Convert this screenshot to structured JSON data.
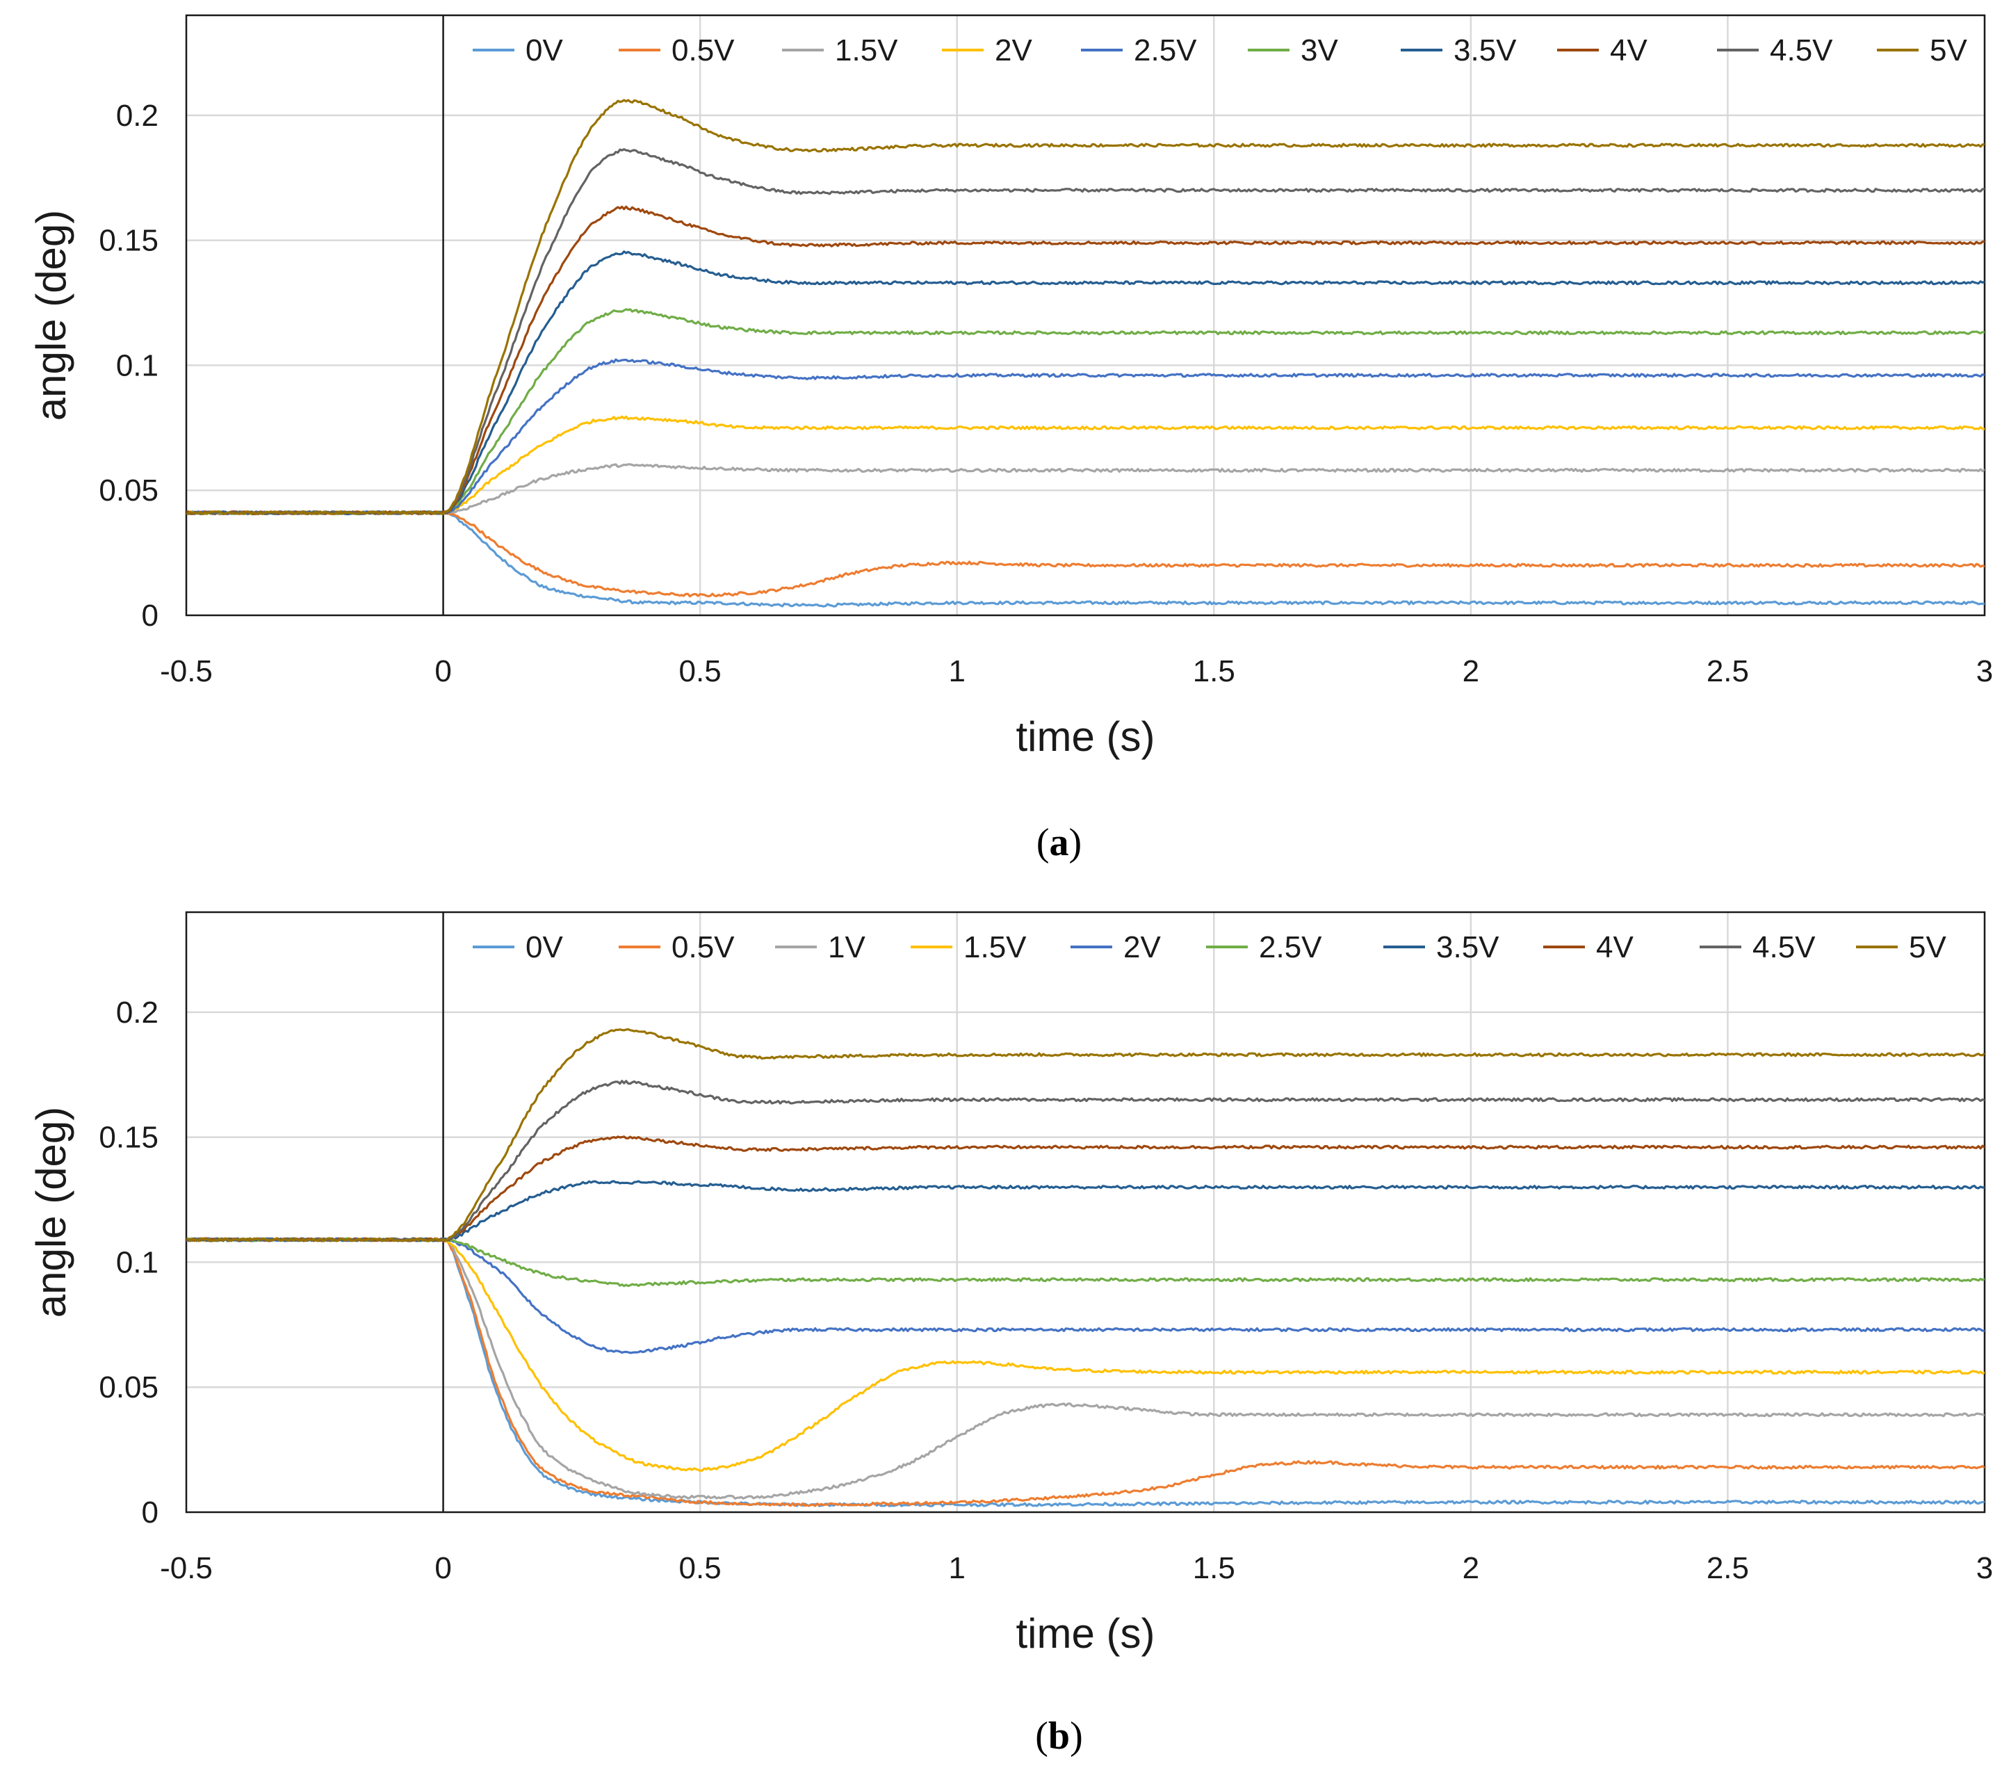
{
  "chart_data": [
    {
      "type": "line",
      "panel_label": "(a)",
      "panel_letter": "a",
      "xlabel": "time (s)",
      "ylabel": "angle (deg)",
      "xlim": [
        -0.5,
        3
      ],
      "ylim": [
        0,
        0.24
      ],
      "x_ticks": [
        -0.5,
        0,
        0.5,
        1,
        1.5,
        2,
        2.5,
        3
      ],
      "x_tick_labels": [
        "-0.5",
        "0",
        "0.5",
        "1",
        "1.5",
        "2",
        "2.5",
        "3"
      ],
      "y_ticks": [
        0,
        0.05,
        0.1,
        0.15,
        0.2
      ],
      "y_tick_labels": [
        "0",
        "0.05",
        "0.1",
        "0.15",
        "0.2"
      ],
      "grid": true,
      "legend_position": "top",
      "series": [
        {
          "name": "0V",
          "color": "#5B9BD5",
          "x": [
            -0.5,
            0,
            0.05,
            0.1,
            0.15,
            0.2,
            0.3,
            0.4,
            0.5,
            0.7,
            1,
            2,
            3
          ],
          "values": [
            0.041,
            0.041,
            0.035,
            0.025,
            0.017,
            0.011,
            0.007,
            0.005,
            0.005,
            0.004,
            0.005,
            0.005,
            0.005
          ]
        },
        {
          "name": "0.5V",
          "color": "#ED7D31",
          "x": [
            -0.5,
            0,
            0.05,
            0.1,
            0.2,
            0.3,
            0.4,
            0.5,
            0.6,
            0.7,
            0.8,
            0.9,
            1,
            1.2,
            2,
            3
          ],
          "values": [
            0.041,
            0.041,
            0.037,
            0.029,
            0.017,
            0.011,
            0.009,
            0.008,
            0.009,
            0.012,
            0.017,
            0.02,
            0.021,
            0.02,
            0.02,
            0.02
          ]
        },
        {
          "name": "1.5V",
          "color": "#A5A5A5",
          "x": [
            -0.5,
            0,
            0.1,
            0.2,
            0.3,
            0.35,
            0.5,
            0.7,
            1,
            2,
            3
          ],
          "values": [
            0.041,
            0.041,
            0.047,
            0.055,
            0.059,
            0.06,
            0.059,
            0.058,
            0.058,
            0.058,
            0.058
          ]
        },
        {
          "name": "2V",
          "color": "#FFC000",
          "x": [
            -0.5,
            0,
            0.1,
            0.2,
            0.3,
            0.35,
            0.45,
            0.6,
            0.8,
            1,
            2,
            3
          ],
          "values": [
            0.041,
            0.041,
            0.055,
            0.069,
            0.078,
            0.079,
            0.078,
            0.075,
            0.075,
            0.075,
            0.075,
            0.075
          ]
        },
        {
          "name": "2.5V",
          "color": "#4472C4",
          "x": [
            -0.5,
            0,
            0.1,
            0.2,
            0.3,
            0.35,
            0.45,
            0.55,
            0.7,
            1,
            2,
            3
          ],
          "values": [
            0.041,
            0.041,
            0.062,
            0.085,
            0.1,
            0.102,
            0.1,
            0.097,
            0.095,
            0.096,
            0.096,
            0.096
          ]
        },
        {
          "name": "3V",
          "color": "#70AD47",
          "x": [
            -0.5,
            0,
            0.1,
            0.2,
            0.3,
            0.35,
            0.45,
            0.55,
            0.7,
            1,
            2,
            3
          ],
          "values": [
            0.041,
            0.041,
            0.068,
            0.099,
            0.119,
            0.122,
            0.119,
            0.115,
            0.113,
            0.113,
            0.113,
            0.113
          ]
        },
        {
          "name": "3.5V",
          "color": "#255E91",
          "x": [
            -0.5,
            0,
            0.1,
            0.2,
            0.3,
            0.35,
            0.45,
            0.55,
            0.7,
            1,
            2,
            3
          ],
          "values": [
            0.041,
            0.041,
            0.076,
            0.116,
            0.141,
            0.145,
            0.141,
            0.136,
            0.133,
            0.133,
            0.133,
            0.133
          ]
        },
        {
          "name": "4V",
          "color": "#9E480E",
          "x": [
            -0.5,
            0,
            0.1,
            0.2,
            0.3,
            0.35,
            0.45,
            0.55,
            0.7,
            1,
            2,
            3
          ],
          "values": [
            0.041,
            0.041,
            0.082,
            0.129,
            0.158,
            0.163,
            0.158,
            0.152,
            0.148,
            0.149,
            0.149,
            0.149
          ]
        },
        {
          "name": "4.5V",
          "color": "#636363",
          "x": [
            -0.5,
            0,
            0.1,
            0.2,
            0.3,
            0.35,
            0.45,
            0.55,
            0.7,
            1,
            2,
            3
          ],
          "values": [
            0.041,
            0.041,
            0.088,
            0.143,
            0.18,
            0.186,
            0.181,
            0.174,
            0.169,
            0.17,
            0.17,
            0.17
          ]
        },
        {
          "name": "5V",
          "color": "#997300",
          "x": [
            -0.5,
            0,
            0.1,
            0.2,
            0.3,
            0.35,
            0.45,
            0.55,
            0.7,
            1,
            2,
            3
          ],
          "values": [
            0.041,
            0.041,
            0.094,
            0.156,
            0.198,
            0.206,
            0.2,
            0.191,
            0.186,
            0.188,
            0.188,
            0.188
          ]
        }
      ]
    },
    {
      "type": "line",
      "panel_label": "(b)",
      "panel_letter": "b",
      "xlabel": "time (s)",
      "ylabel": "angle (deg)",
      "xlim": [
        -0.5,
        3
      ],
      "ylim": [
        0,
        0.24
      ],
      "x_ticks": [
        -0.5,
        0,
        0.5,
        1,
        1.5,
        2,
        2.5,
        3
      ],
      "x_tick_labels": [
        "-0.5",
        "0",
        "0.5",
        "1",
        "1.5",
        "2",
        "2.5",
        "3"
      ],
      "y_ticks": [
        0,
        0.05,
        0.1,
        0.15,
        0.2
      ],
      "y_tick_labels": [
        "0",
        "0.05",
        "0.1",
        "0.15",
        "0.2"
      ],
      "grid": true,
      "legend_position": "top",
      "series": [
        {
          "name": "0V",
          "color": "#5B9BD5",
          "x": [
            -0.5,
            0,
            0.05,
            0.1,
            0.15,
            0.2,
            0.3,
            0.4,
            0.5,
            0.7,
            1,
            2,
            3
          ],
          "values": [
            0.109,
            0.109,
            0.085,
            0.05,
            0.027,
            0.014,
            0.007,
            0.005,
            0.004,
            0.003,
            0.003,
            0.004,
            0.004
          ]
        },
        {
          "name": "0.5V",
          "color": "#ED7D31",
          "x": [
            -0.5,
            0,
            0.05,
            0.1,
            0.15,
            0.2,
            0.3,
            0.4,
            0.5,
            0.7,
            1,
            1.2,
            1.4,
            1.5,
            1.6,
            1.7,
            1.8,
            2,
            3
          ],
          "values": [
            0.109,
            0.109,
            0.087,
            0.053,
            0.029,
            0.016,
            0.008,
            0.006,
            0.004,
            0.003,
            0.004,
            0.006,
            0.01,
            0.015,
            0.019,
            0.02,
            0.019,
            0.018,
            0.018
          ]
        },
        {
          "name": "1V",
          "color": "#A5A5A5",
          "x": [
            -0.5,
            0,
            0.05,
            0.1,
            0.15,
            0.2,
            0.3,
            0.4,
            0.5,
            0.6,
            0.7,
            0.8,
            0.9,
            1,
            1.1,
            1.2,
            1.3,
            1.5,
            2,
            3
          ],
          "values": [
            0.109,
            0.109,
            0.092,
            0.064,
            0.04,
            0.024,
            0.012,
            0.007,
            0.006,
            0.006,
            0.008,
            0.012,
            0.019,
            0.03,
            0.04,
            0.043,
            0.042,
            0.039,
            0.039,
            0.039
          ]
        },
        {
          "name": "1.5V",
          "color": "#FFC000",
          "x": [
            -0.5,
            0,
            0.05,
            0.1,
            0.15,
            0.2,
            0.3,
            0.4,
            0.5,
            0.6,
            0.7,
            0.8,
            0.9,
            1,
            1.1,
            1.2,
            1.5,
            2,
            3
          ],
          "values": [
            0.109,
            0.109,
            0.099,
            0.082,
            0.064,
            0.048,
            0.028,
            0.019,
            0.017,
            0.021,
            0.032,
            0.046,
            0.057,
            0.06,
            0.059,
            0.057,
            0.056,
            0.056,
            0.056
          ]
        },
        {
          "name": "2V",
          "color": "#4472C4",
          "x": [
            -0.5,
            0,
            0.1,
            0.2,
            0.3,
            0.35,
            0.45,
            0.55,
            0.7,
            1,
            2,
            3
          ],
          "values": [
            0.109,
            0.109,
            0.098,
            0.078,
            0.066,
            0.064,
            0.066,
            0.07,
            0.073,
            0.073,
            0.073,
            0.073
          ]
        },
        {
          "name": "2.5V",
          "color": "#70AD47",
          "x": [
            -0.5,
            0,
            0.1,
            0.2,
            0.3,
            0.35,
            0.5,
            0.7,
            1,
            2,
            3
          ],
          "values": [
            0.109,
            0.109,
            0.102,
            0.095,
            0.092,
            0.091,
            0.092,
            0.093,
            0.093,
            0.093,
            0.093
          ]
        },
        {
          "name": "3.5V",
          "color": "#255E91",
          "x": [
            -0.5,
            0,
            0.1,
            0.2,
            0.3,
            0.35,
            0.5,
            0.7,
            1,
            2,
            3
          ],
          "values": [
            0.109,
            0.109,
            0.119,
            0.128,
            0.132,
            0.132,
            0.131,
            0.129,
            0.13,
            0.13,
            0.13
          ]
        },
        {
          "name": "4V",
          "color": "#9E480E",
          "x": [
            -0.5,
            0,
            0.1,
            0.2,
            0.3,
            0.35,
            0.45,
            0.6,
            1,
            2,
            3
          ],
          "values": [
            0.109,
            0.109,
            0.125,
            0.141,
            0.149,
            0.15,
            0.148,
            0.145,
            0.146,
            0.146,
            0.146
          ]
        },
        {
          "name": "4.5V",
          "color": "#636363",
          "x": [
            -0.5,
            0,
            0.1,
            0.2,
            0.3,
            0.35,
            0.45,
            0.6,
            1,
            2,
            3
          ],
          "values": [
            0.109,
            0.109,
            0.13,
            0.156,
            0.17,
            0.172,
            0.169,
            0.164,
            0.165,
            0.165,
            0.165
          ]
        },
        {
          "name": "5V",
          "color": "#997300",
          "x": [
            -0.5,
            0,
            0.1,
            0.2,
            0.3,
            0.35,
            0.45,
            0.6,
            1,
            2,
            3
          ],
          "values": [
            0.109,
            0.109,
            0.136,
            0.171,
            0.19,
            0.193,
            0.189,
            0.182,
            0.183,
            0.183,
            0.183
          ]
        }
      ]
    }
  ]
}
